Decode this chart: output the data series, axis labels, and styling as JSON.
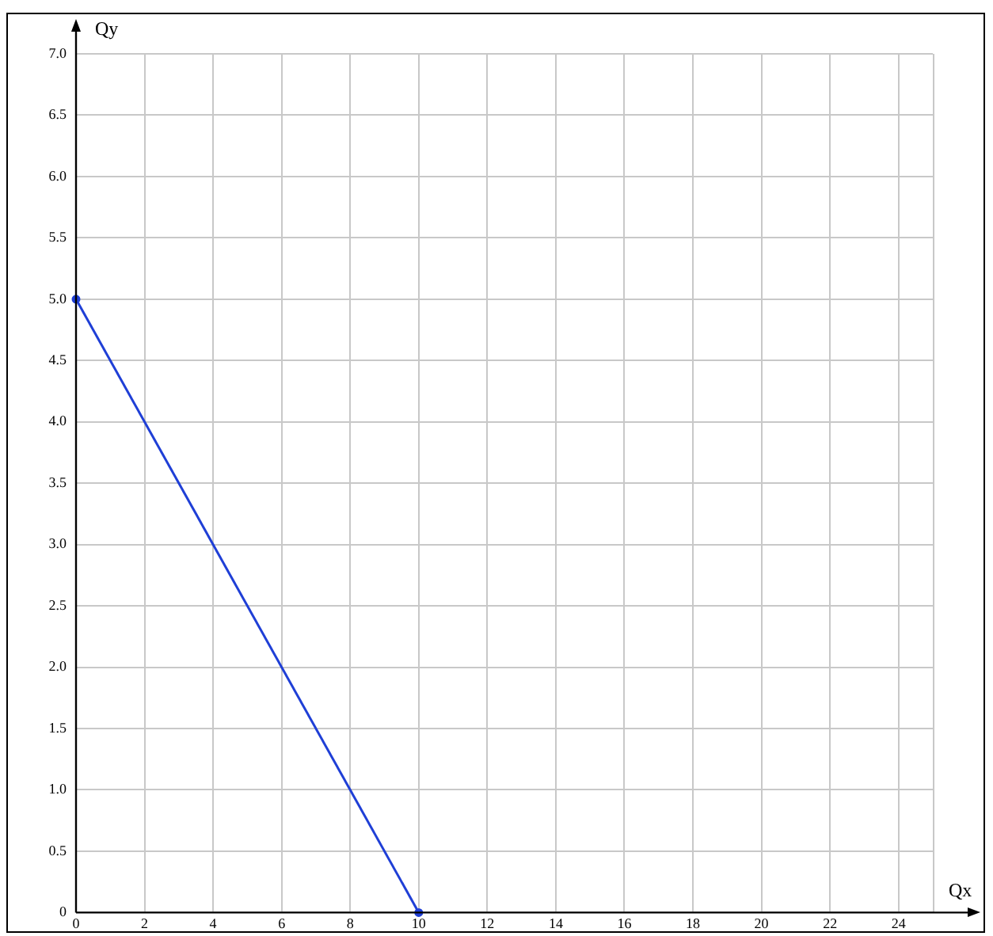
{
  "chart_data": {
    "type": "line",
    "xlabel": "Qx",
    "ylabel": "Qy",
    "x": [
      0,
      10
    ],
    "series": [
      {
        "color": "#1f3fd6",
        "values": [
          5,
          0
        ]
      }
    ],
    "xlim": [
      0,
      25
    ],
    "xticks": [
      0,
      2,
      4,
      6,
      8,
      10,
      12,
      14,
      16,
      18,
      20,
      22,
      24
    ],
    "ylim": [
      0,
      7
    ],
    "yticks": [
      {
        "value": 0,
        "label": "0"
      },
      {
        "value": 0.5,
        "label": "0.5"
      },
      {
        "value": 1,
        "label": "1.0"
      },
      {
        "value": 1.5,
        "label": "1.5"
      },
      {
        "value": 2,
        "label": "2.0"
      },
      {
        "value": 2.5,
        "label": "2.5"
      },
      {
        "value": 3,
        "label": "3.0"
      },
      {
        "value": 3.5,
        "label": "3.5"
      },
      {
        "value": 4,
        "label": "4.0"
      },
      {
        "value": 4.5,
        "label": "4.5"
      },
      {
        "value": 5,
        "label": "5.0"
      },
      {
        "value": 5.5,
        "label": "5.5"
      },
      {
        "value": 6,
        "label": "6.0"
      },
      {
        "value": 6.5,
        "label": "6.5"
      },
      {
        "value": 7,
        "label": "7.0"
      }
    ],
    "grid": true,
    "marker": "circle",
    "line_style": "solid",
    "legend": false
  }
}
